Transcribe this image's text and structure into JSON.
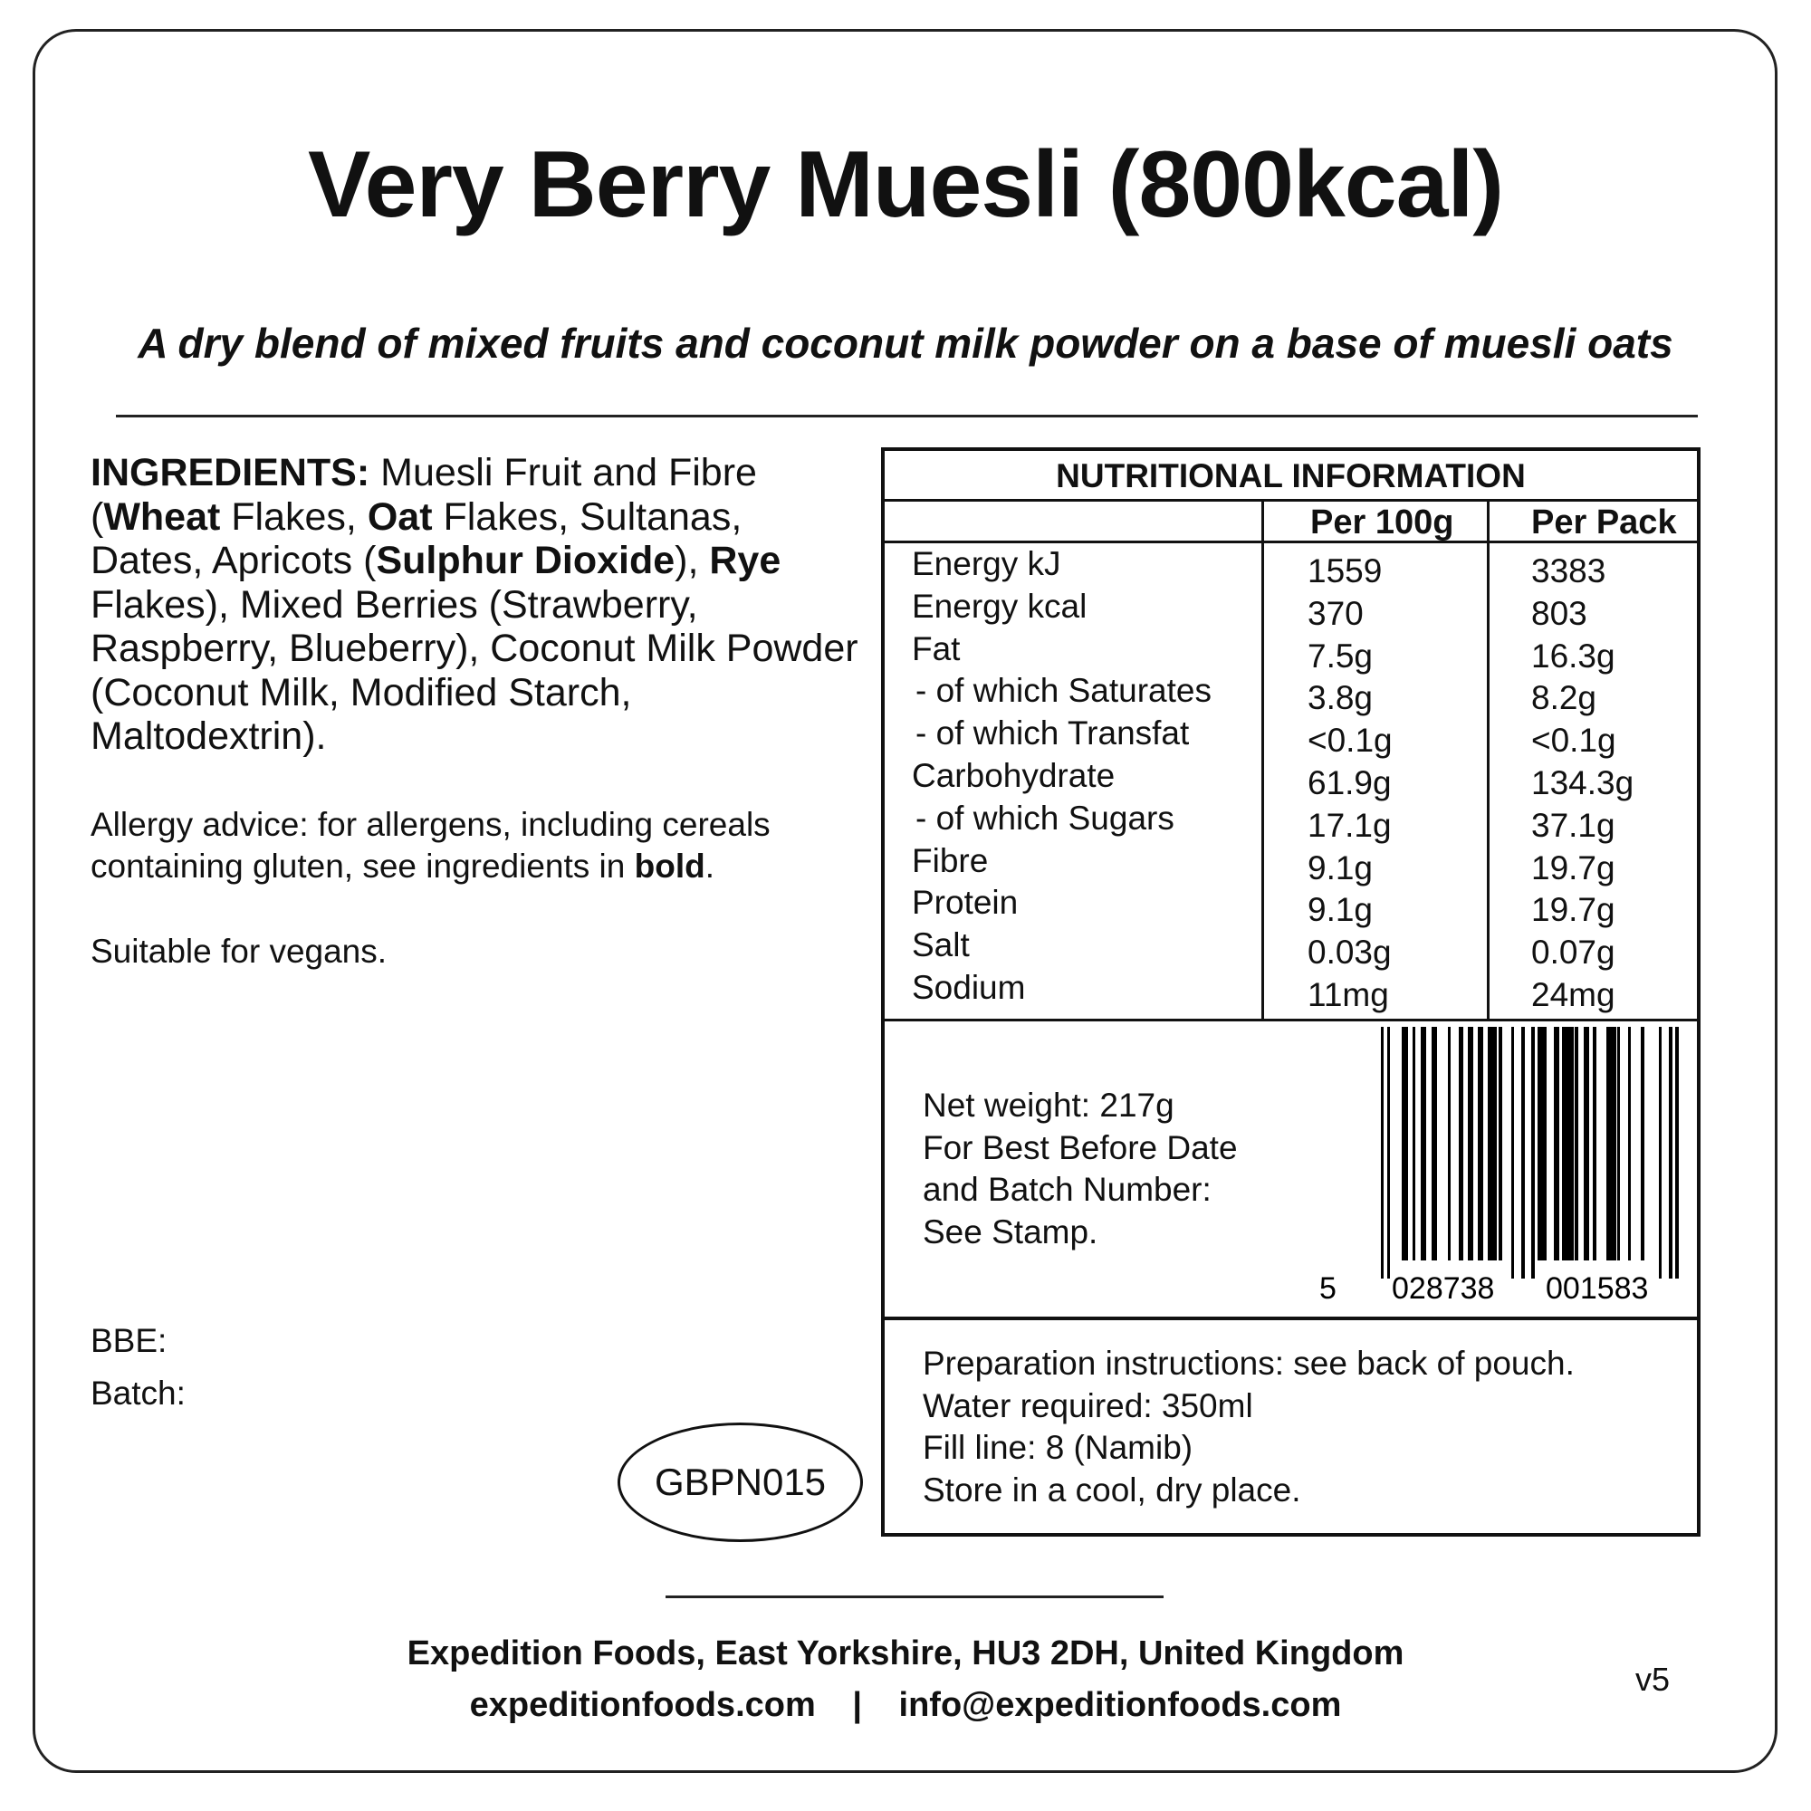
{
  "title": "Very Berry Muesli (800kcal)",
  "subtitle": "A dry blend of mixed fruits and coconut milk powder on a base of muesli oats",
  "ingredients": {
    "label": "INGREDIENTS:",
    "parts": [
      {
        "text": " Muesli Fruit and Fibre (",
        "bold": false
      },
      {
        "text": "Wheat",
        "bold": true
      },
      {
        "text": " Flakes, ",
        "bold": false
      },
      {
        "text": "Oat",
        "bold": true
      },
      {
        "text": " Flakes, Sultanas, Dates, Apricots (",
        "bold": false
      },
      {
        "text": "Sulphur Dioxide",
        "bold": true
      },
      {
        "text": "), ",
        "bold": false
      },
      {
        "text": "Rye",
        "bold": true
      },
      {
        "text": " Flakes),  Mixed Berries (Strawberry, Raspberry, Blueberry), Coconut Milk Powder (Coconut Milk, Modified Starch, Maltodextrin).",
        "bold": false
      }
    ]
  },
  "allergy": {
    "text": "Allergy advice: for allergens, including cereals containing gluten, see ingredients in ",
    "bold": "bold",
    "end": "."
  },
  "vegan": "Suitable for vegans.",
  "bbe_label": "BBE:",
  "batch_label": "Batch:",
  "product_code": "GBPN015",
  "nutrition": {
    "title": "NUTRITIONAL INFORMATION",
    "columns": [
      "Per 100g",
      "Per Pack"
    ],
    "rows": [
      {
        "name": "Energy kJ",
        "per100": "1559",
        "pack": "3383",
        "indent": false
      },
      {
        "name": "Energy kcal",
        "per100": "370",
        "pack": "803",
        "indent": false
      },
      {
        "name": "Fat",
        "per100": "7.5g",
        "pack": "16.3g",
        "indent": false
      },
      {
        "name": " - of which Saturates",
        "per100": "3.8g",
        "pack": "8.2g",
        "indent": true
      },
      {
        "name": " - of which Transfat",
        "per100": "<0.1g",
        "pack": "<0.1g",
        "indent": true
      },
      {
        "name": "Carbohydrate",
        "per100": "61.9g",
        "pack": "134.3g",
        "indent": false
      },
      {
        "name": " - of which Sugars",
        "per100": "17.1g",
        "pack": "37.1g",
        "indent": true
      },
      {
        "name": "Fibre",
        "per100": "9.1g",
        "pack": "19.7g",
        "indent": false
      },
      {
        "name": "Protein",
        "per100": "9.1g",
        "pack": "19.7g",
        "indent": false
      },
      {
        "name": "Salt",
        "per100": "0.03g",
        "pack": "0.07g",
        "indent": false
      },
      {
        "name": "Sodium",
        "per100": "11mg",
        "pack": "24mg",
        "indent": false
      }
    ]
  },
  "net_info": [
    "Net weight: 217g",
    "For Best Before Date",
    "and Batch Number:",
    "See Stamp."
  ],
  "barcode": {
    "first": "5",
    "left": "028738",
    "right": "001583"
  },
  "preparation": [
    "Preparation instructions: see back of pouch.",
    "Water required: 350ml",
    "Fill line: 8 (Namib)",
    "Store in a cool, dry place."
  ],
  "footer": {
    "address": "Expedition Foods, East Yorkshire, HU3 2DH, United Kingdom",
    "website": "expeditionfoods.com",
    "separator": "|",
    "email": "info@expeditionfoods.com"
  },
  "version": "v5"
}
